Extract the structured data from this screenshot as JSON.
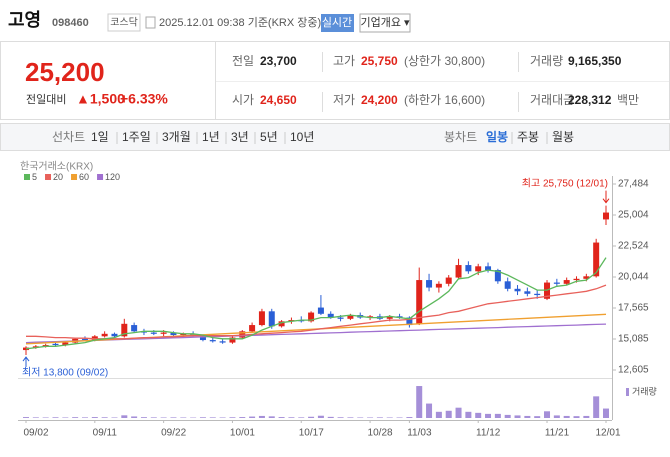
{
  "header": {
    "name": "고영",
    "code": "098460",
    "market": "코스닥",
    "timestamp": "2025.12.01 09:38 기준(KRX 장중)",
    "realtime_button": "실시간",
    "company_button": "기업개요 ▾"
  },
  "quote": {
    "price": "25,200",
    "change_label": "전일대비",
    "change": "▲1,500",
    "change_rate": "+6.33%",
    "stats": [
      {
        "label": "전일",
        "value": "23,700"
      },
      {
        "label": "고가",
        "value": "25,750",
        "note": "(상한가 30,800)"
      },
      {
        "label": "거래량",
        "value": "9,165,350"
      },
      {
        "label": "시가",
        "value": "24,650"
      },
      {
        "label": "저가",
        "value": "24,200",
        "note": "(하한가 16,600)"
      },
      {
        "label": "거래대금",
        "value": "228,312",
        "unit": "백만"
      }
    ]
  },
  "periods": {
    "line_label": "선차트",
    "line_options": [
      "1일",
      "1주일",
      "3개월",
      "1년",
      "3년",
      "5년",
      "10년"
    ],
    "candle_label": "봉차트",
    "candle_options": [
      "일봉",
      "주봉",
      "월봉"
    ]
  },
  "chart_data": {
    "type": "candlestick",
    "source": "한국거래소(KRX)",
    "categories": [
      "09/02",
      null,
      null,
      null,
      null,
      null,
      null,
      "09/11",
      null,
      null,
      null,
      null,
      null,
      null,
      "09/22",
      null,
      null,
      null,
      null,
      null,
      null,
      "10/01",
      null,
      null,
      null,
      null,
      null,
      null,
      "10/17",
      null,
      null,
      null,
      null,
      null,
      null,
      "10/28",
      null,
      null,
      null,
      "11/03",
      null,
      null,
      null,
      null,
      null,
      null,
      "11/12",
      null,
      null,
      null,
      null,
      null,
      null,
      "11/21",
      null,
      null,
      null,
      null,
      null,
      "12/01"
    ],
    "open": [
      14200,
      14400,
      14500,
      14700,
      14600,
      14800,
      15100,
      15000,
      15300,
      15500,
      15300,
      16200,
      15700,
      15600,
      15500,
      15600,
      15400,
      15500,
      15300,
      15000,
      14900,
      14800,
      15200,
      15700,
      16200,
      17300,
      16100,
      16500,
      16600,
      16500,
      17600,
      17100,
      16800,
      16700,
      17000,
      16800,
      16900,
      16700,
      16900,
      16800,
      16300,
      19800,
      19200,
      19500,
      20000,
      21000,
      20500,
      20900,
      20600,
      19700,
      19100,
      18900,
      18700,
      18300,
      19600,
      19500,
      19800,
      19900,
      20100,
      24650
    ],
    "high": [
      14500,
      14600,
      14700,
      14900,
      14900,
      15200,
      15300,
      15400,
      15700,
      15600,
      16700,
      16400,
      15900,
      15800,
      15800,
      15700,
      15600,
      15700,
      15400,
      15200,
      15100,
      15300,
      15800,
      16400,
      17500,
      17500,
      16600,
      16800,
      16900,
      17300,
      18600,
      17300,
      17000,
      17100,
      17200,
      17000,
      17100,
      17000,
      17100,
      16900,
      20800,
      20300,
      19700,
      20200,
      21500,
      21300,
      21100,
      21200,
      20700,
      20000,
      19400,
      19200,
      19000,
      19800,
      19900,
      20000,
      20100,
      20300,
      23100,
      25750
    ],
    "low": [
      13800,
      14300,
      14400,
      14500,
      14500,
      14700,
      14900,
      14900,
      15200,
      15200,
      15200,
      15600,
      15400,
      15400,
      15300,
      15300,
      15200,
      15300,
      14900,
      14800,
      14700,
      14700,
      15100,
      15600,
      16100,
      15900,
      16000,
      16300,
      16400,
      16400,
      17000,
      16700,
      16500,
      16600,
      16700,
      16600,
      16600,
      16500,
      16700,
      16000,
      16200,
      18900,
      18800,
      19300,
      19900,
      20300,
      20200,
      20400,
      19500,
      18900,
      18600,
      18500,
      18300,
      18200,
      19300,
      19400,
      19600,
      19700,
      20000,
      24200
    ],
    "close": [
      14400,
      14500,
      14600,
      14600,
      14800,
      15100,
      15000,
      15300,
      15500,
      15300,
      16300,
      15700,
      15600,
      15500,
      15600,
      15400,
      15500,
      15400,
      15000,
      14900,
      14800,
      15200,
      15700,
      16200,
      17300,
      16100,
      16500,
      16600,
      16500,
      17200,
      17100,
      16800,
      16700,
      17000,
      16800,
      16900,
      16700,
      16900,
      16800,
      16200,
      19800,
      19200,
      19500,
      20000,
      21000,
      20500,
      20900,
      20600,
      19700,
      19100,
      18900,
      18700,
      18600,
      19600,
      19500,
      19800,
      19900,
      20100,
      22800,
      25200
    ],
    "up_color": "#e0241b",
    "down_color": "#2a5fd6",
    "ylim": [
      12605,
      27484
    ],
    "yticks": [
      {
        "value": 12605,
        "label": "12,605"
      },
      {
        "value": 15085,
        "label": "15,085"
      },
      {
        "value": 17565,
        "label": "17,565"
      },
      {
        "value": 20044,
        "label": "20,044"
      },
      {
        "value": 22524,
        "label": "22,524"
      },
      {
        "value": 25004,
        "label": "25,004"
      },
      {
        "value": 27484,
        "label": "27,484"
      }
    ],
    "moving_averages": [
      {
        "name": "5",
        "color": "#5cb85c",
        "values": [
          14300,
          14400,
          14500,
          14500,
          14600,
          14700,
          14800,
          15000,
          15100,
          15200,
          15500,
          15600,
          15700,
          15700,
          15700,
          15600,
          15500,
          15500,
          15400,
          15200,
          15100,
          15100,
          15100,
          15400,
          15800,
          16100,
          16400,
          16500,
          16600,
          16600,
          16800,
          16800,
          16900,
          17000,
          16900,
          16800,
          16800,
          16900,
          16800,
          16700,
          17300,
          17800,
          18300,
          18900,
          19900,
          20000,
          20400,
          20600,
          20500,
          20200,
          19800,
          19400,
          19000,
          19000,
          19300,
          19400,
          19700,
          19800,
          20400,
          21600
        ]
      },
      {
        "name": "20",
        "color": "#e8615b",
        "values": [
          15300,
          15300,
          15250,
          15200,
          15200,
          15150,
          15150,
          15100,
          15100,
          15100,
          15100,
          15150,
          15200,
          15200,
          15250,
          15250,
          15300,
          15350,
          15350,
          15350,
          15350,
          15350,
          15400,
          15450,
          15500,
          15550,
          15600,
          15650,
          15700,
          15800,
          15900,
          16000,
          16100,
          16200,
          16300,
          16400,
          16500,
          16600,
          16600,
          16650,
          16800,
          16900,
          17000,
          17200,
          17300,
          17500,
          17700,
          17900,
          18000,
          18100,
          18200,
          18300,
          18400,
          18500,
          18600,
          18700,
          18800,
          18900,
          19100,
          19400
        ]
      },
      {
        "name": "60",
        "color": "#f0a030",
        "values": [
          14700,
          14740,
          14780,
          14820,
          14860,
          14900,
          14940,
          14980,
          15020,
          15060,
          15100,
          15140,
          15180,
          15220,
          15260,
          15300,
          15340,
          15380,
          15420,
          15460,
          15500,
          15540,
          15580,
          15620,
          15660,
          15700,
          15740,
          15780,
          15820,
          15860,
          15900,
          15940,
          15980,
          16020,
          16060,
          16100,
          16140,
          16180,
          16220,
          16260,
          16300,
          16340,
          16380,
          16420,
          16460,
          16500,
          16540,
          16580,
          16620,
          16660,
          16700,
          16740,
          16780,
          16820,
          16860,
          16900,
          16940,
          16980,
          17020,
          17060
        ]
      },
      {
        "name": "120",
        "color": "#a070d0",
        "values": [
          14800,
          14825,
          14850,
          14875,
          14900,
          14925,
          14950,
          14975,
          15000,
          15025,
          15050,
          15075,
          15100,
          15125,
          15150,
          15175,
          15200,
          15225,
          15250,
          15275,
          15300,
          15325,
          15350,
          15375,
          15400,
          15425,
          15450,
          15475,
          15500,
          15525,
          15550,
          15575,
          15600,
          15625,
          15650,
          15675,
          15700,
          15725,
          15750,
          15775,
          15800,
          15825,
          15850,
          15875,
          15900,
          15925,
          15950,
          15975,
          16000,
          16025,
          16050,
          16075,
          16100,
          16125,
          16150,
          16175,
          16200,
          16225,
          16250,
          16275
        ]
      }
    ],
    "volume": {
      "name": "거래량",
      "color": "#a58fd8",
      "ylim": [
        0,
        32000000
      ],
      "values": [
        900000,
        600000,
        500000,
        700000,
        500000,
        800000,
        600000,
        900000,
        700000,
        500000,
        2600000,
        1500000,
        800000,
        600000,
        500000,
        600000,
        500000,
        400000,
        700000,
        600000,
        500000,
        700000,
        900000,
        1400000,
        2000000,
        1600000,
        900000,
        700000,
        600000,
        1200000,
        2200000,
        1100000,
        700000,
        600000,
        500000,
        500000,
        600000,
        500000,
        500000,
        900000,
        31000000,
        14000000,
        6000000,
        7000000,
        10000000,
        6000000,
        5000000,
        4000000,
        4000000,
        3000000,
        2500000,
        2000000,
        1800000,
        6500000,
        2500000,
        2000000,
        1800000,
        2000000,
        21000000,
        9165350
      ]
    },
    "annotations": [
      {
        "text": "최고 25,750 (12/01)",
        "color": "#e0241b"
      },
      {
        "text": "최저 13,800 (09/02)",
        "color": "#2a5fd6"
      }
    ]
  }
}
